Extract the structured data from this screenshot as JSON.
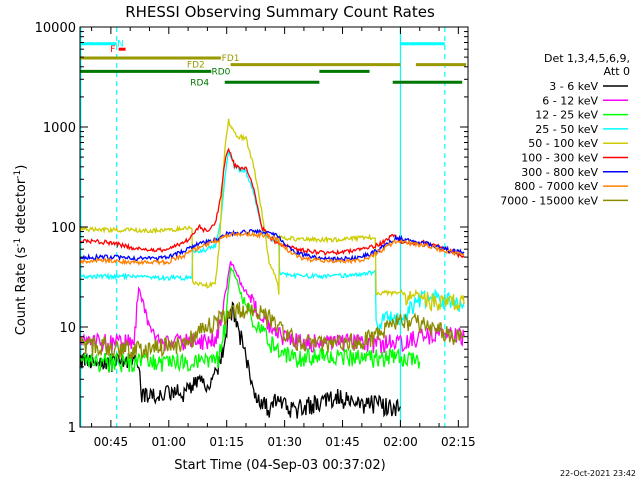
{
  "chart_data": {
    "type": "line",
    "title": "RHESSI Observing Summary Count Rates",
    "xlabel": "Start Time (04-Sep-03 00:37:02)",
    "ylabel_parts": [
      "Count Rate (s",
      "-1",
      " detector",
      "-1",
      ")"
    ],
    "timestamp": "22-Oct-2021 23:42",
    "y_scale": "log",
    "ylim": [
      1,
      10000
    ],
    "xlim_minutes": [
      37.0,
      137.5
    ],
    "x_ticks": [
      {
        "t": 45,
        "label": "00:45"
      },
      {
        "t": 60,
        "label": "01:00"
      },
      {
        "t": 75,
        "label": "01:15"
      },
      {
        "t": 90,
        "label": "01:30"
      },
      {
        "t": 105,
        "label": "01:45"
      },
      {
        "t": 120,
        "label": "02:00"
      },
      {
        "t": 135,
        "label": "02:15"
      }
    ],
    "y_ticks": [
      {
        "v": 1,
        "label": "1"
      },
      {
        "v": 10,
        "label": "10"
      },
      {
        "v": 100,
        "label": "100"
      },
      {
        "v": 1000,
        "label": "1000"
      },
      {
        "v": 10000,
        "label": "10000"
      }
    ],
    "legend_header": [
      "Det 1,3,4,5,6,9,",
      "Att 0"
    ],
    "legend_position": "right",
    "series": [
      {
        "name": "3 - 6 keV",
        "color": "#000000",
        "points": [
          [
            37,
            4.5
          ],
          [
            52,
            4.5
          ],
          [
            53,
            2
          ],
          [
            57,
            2
          ],
          [
            60,
            2.2
          ],
          [
            64,
            2.2
          ],
          [
            67,
            3
          ],
          [
            70,
            2.5
          ],
          [
            72,
            3.5
          ],
          [
            74,
            6
          ],
          [
            75.5,
            12
          ],
          [
            76.5,
            15
          ],
          [
            78,
            10
          ],
          [
            80,
            5
          ],
          [
            82,
            2.5
          ],
          [
            84,
            1.8
          ],
          [
            86,
            1.5
          ],
          [
            88,
            2
          ],
          [
            91,
            1.5
          ],
          [
            95,
            1.6
          ],
          [
            100,
            1.8
          ],
          [
            104,
            2
          ],
          [
            110,
            1.6
          ],
          [
            114,
            1.8
          ],
          [
            118,
            1.5
          ],
          [
            120,
            1.6
          ]
        ]
      },
      {
        "name": "6 - 12 keV",
        "color": "#ff00ff",
        "points": [
          [
            37,
            7
          ],
          [
            51,
            7
          ],
          [
            52.2,
            25
          ],
          [
            53.5,
            15
          ],
          [
            55,
            9
          ],
          [
            57,
            7
          ],
          [
            60,
            7
          ],
          [
            64,
            7
          ],
          [
            67,
            7.5
          ],
          [
            70,
            7
          ],
          [
            72,
            8
          ],
          [
            73.5,
            12
          ],
          [
            75,
            25
          ],
          [
            76,
            45
          ],
          [
            77.5,
            35
          ],
          [
            79,
            25
          ],
          [
            81,
            20
          ],
          [
            83,
            15
          ],
          [
            86,
            10
          ],
          [
            90,
            8
          ],
          [
            95,
            7
          ],
          [
            100,
            7
          ],
          [
            105,
            7
          ],
          [
            110,
            7
          ],
          [
            115,
            7
          ],
          [
            120,
            7
          ],
          [
            125,
            8
          ],
          [
            130,
            8.5
          ],
          [
            136.5,
            8
          ]
        ]
      },
      {
        "name": "12 - 25 keV",
        "color": "#00ff00",
        "points": [
          [
            37,
            4.5
          ],
          [
            52,
            4.5
          ],
          [
            57,
            4.5
          ],
          [
            64,
            4.5
          ],
          [
            70,
            4.5
          ],
          [
            73,
            5
          ],
          [
            74.5,
            10
          ],
          [
            76,
            40
          ],
          [
            77.5,
            30
          ],
          [
            79,
            20
          ],
          [
            82,
            12
          ],
          [
            85,
            8
          ],
          [
            88,
            6
          ],
          [
            92,
            5
          ],
          [
            100,
            5
          ],
          [
            110,
            5
          ],
          [
            120,
            5
          ],
          [
            125,
            4.5
          ]
        ]
      },
      {
        "name": "25 - 50 keV",
        "color": "#00ffff",
        "points": [
          [
            37,
            32
          ],
          [
            50,
            32
          ],
          [
            55,
            31
          ],
          [
            62,
            31
          ],
          [
            66,
            31
          ],
          [
            66.2,
            55
          ],
          [
            70,
            60
          ],
          [
            72,
            65
          ],
          [
            73.5,
            120
          ],
          [
            74.5,
            300
          ],
          [
            75.5,
            580
          ],
          [
            77,
            400
          ],
          [
            78,
            380
          ],
          [
            80,
            360
          ],
          [
            82,
            220
          ],
          [
            84,
            100
          ],
          [
            85,
            80
          ],
          [
            87,
            75
          ],
          [
            88.5,
            72
          ],
          [
            88.7,
            35
          ],
          [
            92,
            33
          ],
          [
            100,
            32
          ],
          [
            108,
            33
          ],
          [
            112,
            35
          ],
          [
            113.5,
            36
          ],
          [
            113.7,
            12
          ],
          [
            118,
            12
          ],
          [
            121,
            13
          ],
          [
            123,
            16
          ],
          [
            125,
            19
          ],
          [
            128,
            20
          ],
          [
            131,
            19
          ],
          [
            134,
            17
          ],
          [
            136.5,
            16
          ]
        ]
      },
      {
        "name": "50 - 100 keV",
        "color": "#cccc00",
        "points": [
          [
            37,
            95
          ],
          [
            50,
            93
          ],
          [
            55,
            92
          ],
          [
            62,
            95
          ],
          [
            66,
            98
          ],
          [
            66.2,
            28
          ],
          [
            70,
            26
          ],
          [
            72,
            27
          ],
          [
            73,
            60
          ],
          [
            74.5,
            600
          ],
          [
            75.5,
            1150
          ],
          [
            77,
            850
          ],
          [
            78,
            800
          ],
          [
            80,
            780
          ],
          [
            82,
            400
          ],
          [
            84,
            150
          ],
          [
            86,
            45
          ],
          [
            88,
            30
          ],
          [
            88.5,
            22
          ],
          [
            88.7,
            78
          ],
          [
            95,
            75
          ],
          [
            100,
            75
          ],
          [
            105,
            75
          ],
          [
            110,
            78
          ],
          [
            113.5,
            80
          ],
          [
            113.7,
            22
          ],
          [
            118,
            22
          ],
          [
            120,
            23
          ],
          [
            122,
            19
          ],
          [
            124,
            22
          ],
          [
            126,
            19
          ],
          [
            130,
            17
          ],
          [
            133,
            18
          ],
          [
            136.5,
            17
          ]
        ]
      },
      {
        "name": "100 - 300 keV",
        "color": "#ff0000",
        "points": [
          [
            37,
            73
          ],
          [
            45,
            70
          ],
          [
            50,
            63
          ],
          [
            55,
            58
          ],
          [
            60,
            60
          ],
          [
            64,
            70
          ],
          [
            66,
            82
          ],
          [
            68,
            100
          ],
          [
            70,
            90
          ],
          [
            72,
            110
          ],
          [
            73.5,
            200
          ],
          [
            74.5,
            450
          ],
          [
            75.5,
            600
          ],
          [
            77,
            420
          ],
          [
            78,
            390
          ],
          [
            80,
            380
          ],
          [
            82,
            250
          ],
          [
            84,
            100
          ],
          [
            86,
            80
          ],
          [
            88,
            70
          ],
          [
            90,
            65
          ],
          [
            95,
            58
          ],
          [
            100,
            55
          ],
          [
            105,
            56
          ],
          [
            110,
            60
          ],
          [
            115,
            68
          ],
          [
            117,
            78
          ],
          [
            118.5,
            82
          ],
          [
            120,
            72
          ],
          [
            123,
            68
          ],
          [
            126,
            70
          ],
          [
            130,
            64
          ],
          [
            133,
            57
          ],
          [
            136.5,
            50
          ]
        ]
      },
      {
        "name": "300 - 800 keV",
        "color": "#0000ff",
        "points": [
          [
            37,
            50
          ],
          [
            45,
            50
          ],
          [
            50,
            49
          ],
          [
            55,
            48
          ],
          [
            60,
            50
          ],
          [
            64,
            58
          ],
          [
            68,
            68
          ],
          [
            72,
            75
          ],
          [
            75,
            85
          ],
          [
            78,
            88
          ],
          [
            82,
            90
          ],
          [
            85,
            88
          ],
          [
            88,
            82
          ],
          [
            91,
            62
          ],
          [
            95,
            52
          ],
          [
            100,
            48
          ],
          [
            105,
            48
          ],
          [
            110,
            50
          ],
          [
            114,
            58
          ],
          [
            117,
            70
          ],
          [
            119,
            78
          ],
          [
            121,
            75
          ],
          [
            124,
            70
          ],
          [
            127,
            68
          ],
          [
            130,
            62
          ],
          [
            133,
            58
          ],
          [
            136.5,
            55
          ]
        ]
      },
      {
        "name": "800 - 7000 keV",
        "color": "#ff8000",
        "points": [
          [
            37,
            46
          ],
          [
            45,
            46
          ],
          [
            50,
            44
          ],
          [
            55,
            44
          ],
          [
            60,
            45
          ],
          [
            64,
            52
          ],
          [
            68,
            63
          ],
          [
            72,
            72
          ],
          [
            75,
            82
          ],
          [
            78,
            85
          ],
          [
            82,
            85
          ],
          [
            85,
            82
          ],
          [
            88,
            75
          ],
          [
            91,
            58
          ],
          [
            95,
            48
          ],
          [
            100,
            46
          ],
          [
            105,
            45
          ],
          [
            110,
            47
          ],
          [
            114,
            55
          ],
          [
            117,
            66
          ],
          [
            119,
            73
          ],
          [
            121,
            71
          ],
          [
            124,
            67
          ],
          [
            127,
            65
          ],
          [
            130,
            60
          ],
          [
            133,
            56
          ],
          [
            136.5,
            53
          ]
        ]
      },
      {
        "name": "7000 - 15000 keV",
        "color": "#8b8b00",
        "points": [
          [
            37,
            6.5
          ],
          [
            45,
            6.5
          ],
          [
            50,
            6
          ],
          [
            55,
            6
          ],
          [
            60,
            6.5
          ],
          [
            64,
            7
          ],
          [
            67,
            8.5
          ],
          [
            70,
            10
          ],
          [
            73,
            12
          ],
          [
            76,
            14
          ],
          [
            79,
            15
          ],
          [
            82,
            15
          ],
          [
            85,
            13
          ],
          [
            88,
            11
          ],
          [
            91,
            8
          ],
          [
            95,
            7
          ],
          [
            100,
            6.5
          ],
          [
            105,
            7
          ],
          [
            110,
            7.5
          ],
          [
            114,
            8.5
          ],
          [
            117,
            10
          ],
          [
            119,
            11
          ],
          [
            121,
            11.5
          ],
          [
            124,
            11
          ],
          [
            127,
            10.5
          ],
          [
            130,
            9.5
          ],
          [
            133,
            8.5
          ],
          [
            136.5,
            8
          ]
        ]
      }
    ],
    "state_bars": [
      {
        "label": "N",
        "color": "#00ffff",
        "row_value": 6800,
        "segments": [
          [
            37,
            46.5
          ],
          [
            120,
            131.5
          ]
        ],
        "label_t": 47.5
      },
      {
        "label": "F",
        "color": "#ff0000",
        "row_value": 6000,
        "segments": [
          [
            47,
            48.8
          ]
        ],
        "label_t": 45.5
      },
      {
        "label": "FD1",
        "color": "#999900",
        "row_value": 4900,
        "segments": [
          [
            37,
            73.5
          ]
        ],
        "label_t": 76
      },
      {
        "label": "FD2",
        "color": "#999900",
        "row_value": 4200,
        "segments": [
          [
            76,
            120
          ],
          [
            124,
            137
          ]
        ],
        "label_t": 67
      },
      {
        "label": "RD0",
        "color": "#007700",
        "row_value": 3600,
        "segments": [
          [
            37,
            71
          ],
          [
            99,
            112
          ]
        ],
        "label_t": 73.5
      },
      {
        "label": "RD4",
        "color": "#007700",
        "row_value": 2800,
        "segments": [
          [
            74.5,
            99
          ],
          [
            118,
            136
          ]
        ],
        "label_t": 68
      }
    ],
    "vertical_lines": [
      {
        "t": 37.2,
        "color": "#00ffff",
        "style": "solid"
      },
      {
        "t": 46.5,
        "color": "#00ffff",
        "style": "dashed"
      },
      {
        "t": 120,
        "color": "#00ffff",
        "style": "solid"
      },
      {
        "t": 131.5,
        "color": "#00ffff",
        "style": "dashed"
      }
    ]
  }
}
